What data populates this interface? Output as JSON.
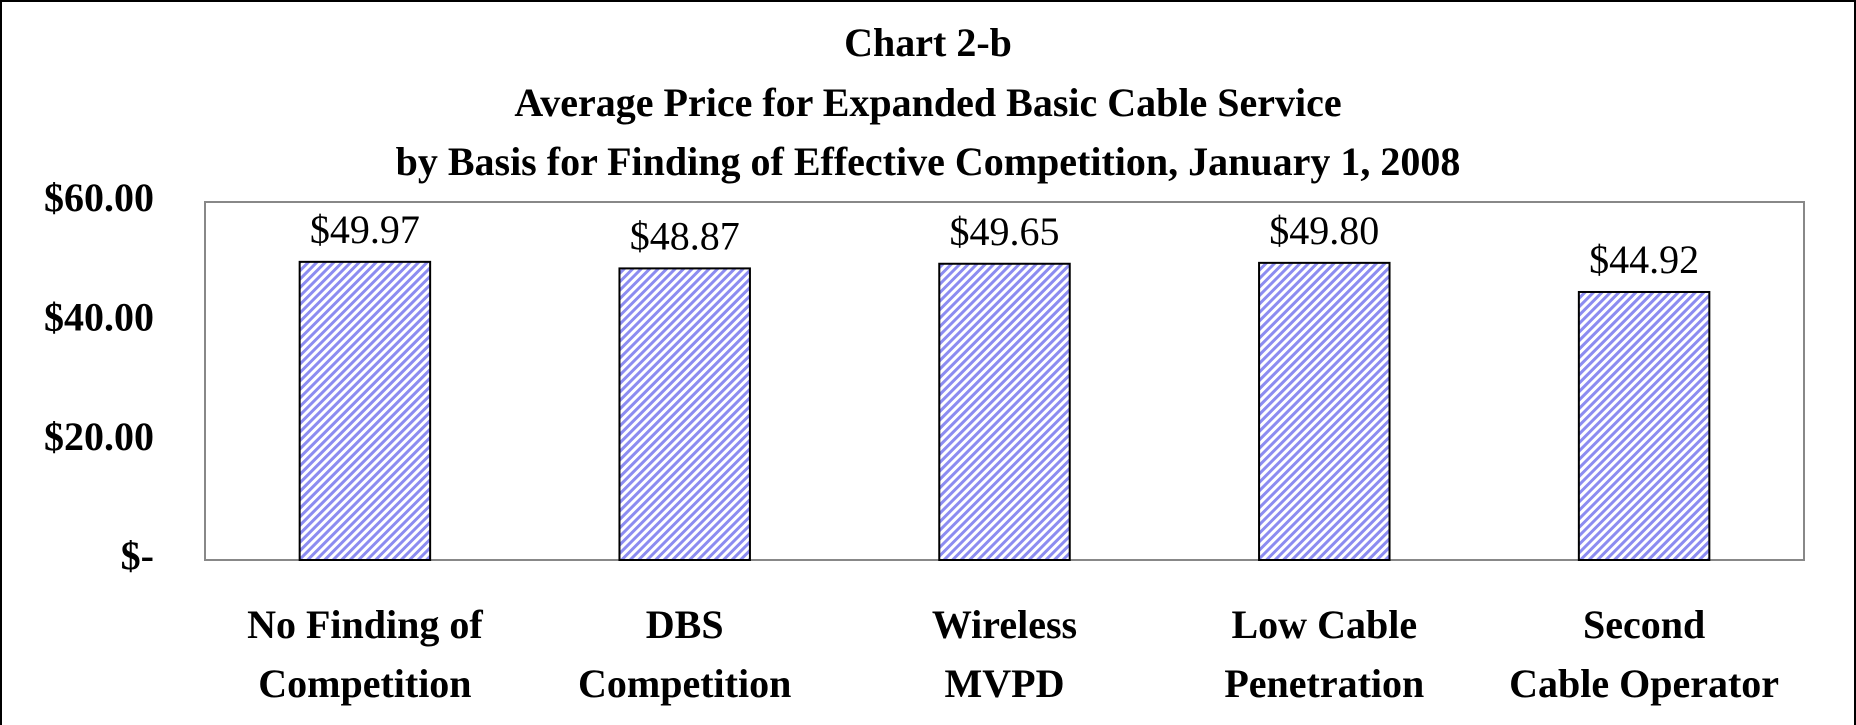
{
  "chart_data": {
    "type": "bar",
    "title": [
      "Chart 2-b",
      "Average Price for Expanded Basic Cable Service",
      "by Basis for Finding of Effective Competition, January 1, 2008"
    ],
    "categories": [
      [
        "No Finding of",
        "Competition"
      ],
      [
        "DBS",
        "Competition"
      ],
      [
        "Wireless",
        "MVPD"
      ],
      [
        "Low Cable",
        "Penetration"
      ],
      [
        "Second",
        "Cable Operator"
      ]
    ],
    "values": [
      49.97,
      48.87,
      49.65,
      49.8,
      44.92
    ],
    "value_labels": [
      "$49.97",
      "$48.87",
      "$49.65",
      "$49.80",
      "$44.92"
    ],
    "color": "#8c8cf0",
    "ylim": [
      0,
      60
    ],
    "yticks": [
      {
        "value": 0,
        "label": "$-"
      },
      {
        "value": 20,
        "label": "$20.00"
      },
      {
        "value": 40,
        "label": "$40.00"
      },
      {
        "value": 60,
        "label": "$60.00"
      }
    ],
    "grid": false
  }
}
